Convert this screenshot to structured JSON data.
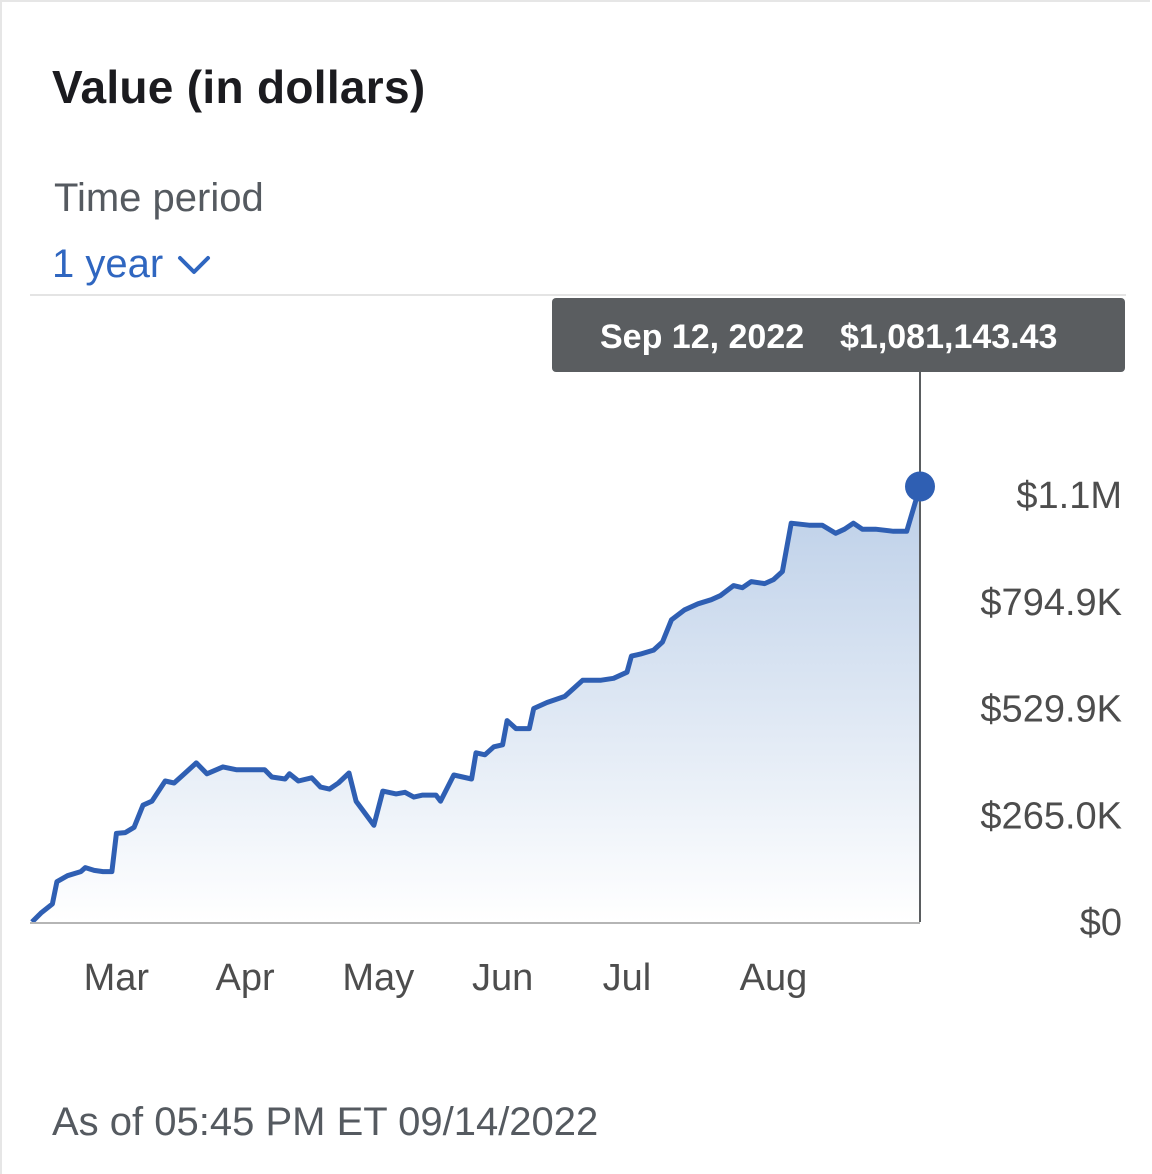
{
  "header": {
    "title": "Value (in dollars)"
  },
  "period": {
    "label": "Time period",
    "selected": "1 year"
  },
  "tooltip": {
    "date": "Sep 12, 2022",
    "value": "$1,081,143.43"
  },
  "footer": {
    "as_of": "As of 05:45 PM ET 09/14/2022"
  },
  "colors": {
    "line": "#2f5fb3",
    "fill_top": "#bccfe8",
    "fill_bottom": "#ffffff",
    "tooltip_bg": "#5a5d60",
    "axis": "#9a9a9a",
    "accent": "#2f66c0"
  },
  "icons": {
    "period_chevron": "chevron-down-icon"
  },
  "chart_data": {
    "type": "area",
    "y_ticks": [
      {
        "value": 0,
        "label": "$0"
      },
      {
        "value": 265000,
        "label": "$265.0K"
      },
      {
        "value": 529900,
        "label": "$529.9K"
      },
      {
        "value": 794900,
        "label": "$794.9K"
      },
      {
        "value": 1060000,
        "label": "$1.1M"
      }
    ],
    "x_ticks": [
      {
        "x": 0.095,
        "label": "Mar"
      },
      {
        "x": 0.24,
        "label": "Apr"
      },
      {
        "x": 0.39,
        "label": "May"
      },
      {
        "x": 0.53,
        "label": "Jun"
      },
      {
        "x": 0.67,
        "label": "Jul"
      },
      {
        "x": 0.835,
        "label": "Aug"
      }
    ],
    "ylim": [
      0,
      1060000
    ],
    "x_range": [
      0,
      1
    ],
    "highlight": {
      "date": "Sep 12, 2022",
      "value": 1081143.43
    },
    "series": [
      {
        "points": [
          [
            0.0,
            0
          ],
          [
            0.01,
            22000
          ],
          [
            0.023,
            45000
          ],
          [
            0.028,
            100000
          ],
          [
            0.04,
            115000
          ],
          [
            0.055,
            125000
          ],
          [
            0.06,
            135000
          ],
          [
            0.07,
            128000
          ],
          [
            0.08,
            125000
          ],
          [
            0.09,
            125000
          ],
          [
            0.095,
            220000
          ],
          [
            0.105,
            222000
          ],
          [
            0.115,
            235000
          ],
          [
            0.125,
            290000
          ],
          [
            0.135,
            300000
          ],
          [
            0.15,
            350000
          ],
          [
            0.16,
            345000
          ],
          [
            0.17,
            365000
          ],
          [
            0.185,
            395000
          ],
          [
            0.197,
            368000
          ],
          [
            0.215,
            385000
          ],
          [
            0.23,
            378000
          ],
          [
            0.25,
            378000
          ],
          [
            0.262,
            378000
          ],
          [
            0.27,
            360000
          ],
          [
            0.285,
            355000
          ],
          [
            0.29,
            368000
          ],
          [
            0.3,
            350000
          ],
          [
            0.315,
            358000
          ],
          [
            0.325,
            335000
          ],
          [
            0.335,
            330000
          ],
          [
            0.345,
            345000
          ],
          [
            0.357,
            370000
          ],
          [
            0.365,
            300000
          ],
          [
            0.375,
            270000
          ],
          [
            0.385,
            240000
          ],
          [
            0.395,
            325000
          ],
          [
            0.41,
            318000
          ],
          [
            0.42,
            322000
          ],
          [
            0.43,
            310000
          ],
          [
            0.44,
            315000
          ],
          [
            0.455,
            315000
          ],
          [
            0.46,
            300000
          ],
          [
            0.475,
            365000
          ],
          [
            0.495,
            355000
          ],
          [
            0.5,
            420000
          ],
          [
            0.51,
            415000
          ],
          [
            0.52,
            435000
          ],
          [
            0.53,
            440000
          ],
          [
            0.535,
            500000
          ],
          [
            0.545,
            480000
          ],
          [
            0.56,
            480000
          ],
          [
            0.565,
            530000
          ],
          [
            0.58,
            545000
          ],
          [
            0.6,
            560000
          ],
          [
            0.61,
            580000
          ],
          [
            0.62,
            600000
          ],
          [
            0.64,
            600000
          ],
          [
            0.655,
            605000
          ],
          [
            0.67,
            620000
          ],
          [
            0.675,
            660000
          ],
          [
            0.685,
            665000
          ],
          [
            0.7,
            675000
          ],
          [
            0.71,
            695000
          ],
          [
            0.72,
            750000
          ],
          [
            0.735,
            775000
          ],
          [
            0.75,
            790000
          ],
          [
            0.765,
            800000
          ],
          [
            0.775,
            810000
          ],
          [
            0.79,
            835000
          ],
          [
            0.8,
            830000
          ],
          [
            0.81,
            845000
          ],
          [
            0.825,
            840000
          ],
          [
            0.835,
            850000
          ],
          [
            0.845,
            870000
          ],
          [
            0.855,
            990000
          ],
          [
            0.875,
            985000
          ],
          [
            0.89,
            985000
          ],
          [
            0.905,
            965000
          ],
          [
            0.915,
            975000
          ],
          [
            0.925,
            990000
          ],
          [
            0.935,
            975000
          ],
          [
            0.95,
            975000
          ],
          [
            0.97,
            970000
          ],
          [
            0.985,
            970000
          ],
          [
            1.0,
            1081143
          ]
        ]
      }
    ]
  }
}
